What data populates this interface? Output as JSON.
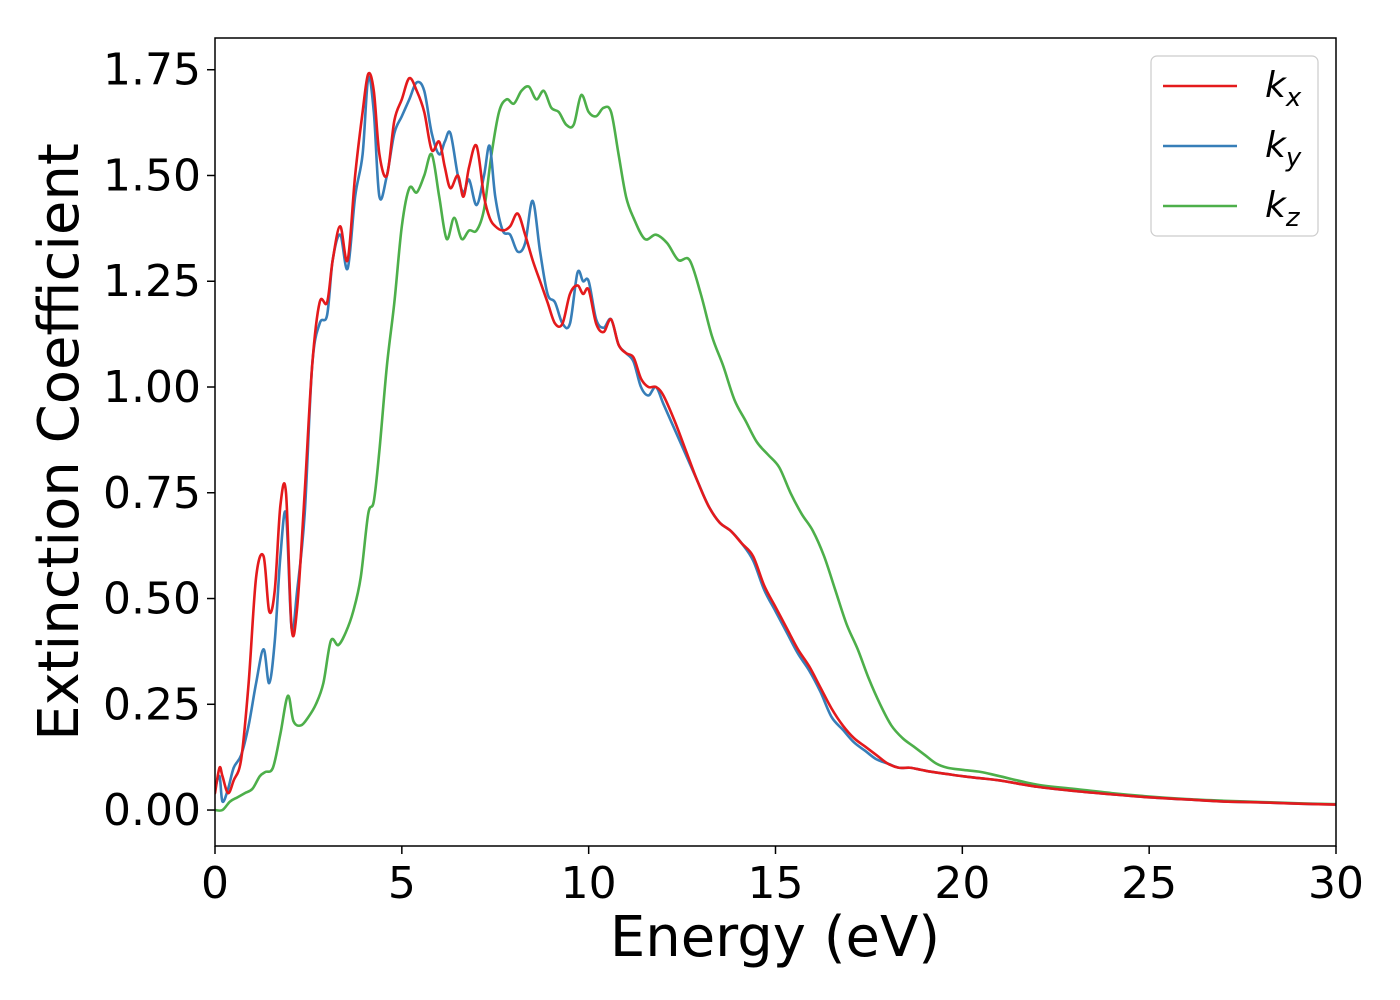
{
  "chart_data": {
    "type": "line",
    "title": "",
    "xlabel": "Energy (eV)",
    "ylabel": "Extinction Coefficient",
    "xlim": [
      0,
      30
    ],
    "ylim": [
      -0.085,
      1.825
    ],
    "xticks": [
      0,
      5,
      10,
      15,
      20,
      25,
      30
    ],
    "xtick_labels": [
      "0",
      "5",
      "10",
      "15",
      "20",
      "25",
      "30"
    ],
    "yticks": [
      0.0,
      0.25,
      0.5,
      0.75,
      1.0,
      1.25,
      1.5,
      1.75
    ],
    "ytick_labels": [
      "0.00",
      "0.25",
      "0.50",
      "0.75",
      "1.00",
      "1.25",
      "1.50",
      "1.75"
    ],
    "grid": false,
    "legend_position": "top-right",
    "series": [
      {
        "name": "k_x",
        "label_main": "k",
        "label_sub": "x",
        "color": "#e41a1c",
        "x": [
          0,
          0.12,
          0.2,
          0.35,
          0.5,
          0.7,
          0.9,
          1.1,
          1.3,
          1.45,
          1.6,
          1.75,
          1.9,
          2.05,
          2.2,
          2.4,
          2.6,
          2.8,
          3.0,
          3.15,
          3.35,
          3.55,
          3.75,
          3.95,
          4.1,
          4.25,
          4.4,
          4.6,
          4.8,
          5.0,
          5.2,
          5.4,
          5.6,
          5.8,
          6.0,
          6.15,
          6.3,
          6.5,
          6.65,
          6.8,
          7.0,
          7.2,
          7.35,
          7.5,
          7.7,
          7.9,
          8.1,
          8.3,
          8.5,
          8.7,
          8.9,
          9.1,
          9.3,
          9.5,
          9.7,
          9.85,
          10.0,
          10.2,
          10.4,
          10.6,
          10.8,
          11.0,
          11.2,
          11.4,
          11.6,
          11.8,
          12.0,
          12.3,
          12.6,
          12.9,
          13.2,
          13.5,
          13.8,
          14.1,
          14.4,
          14.7,
          15.0,
          15.3,
          15.6,
          15.9,
          16.2,
          16.5,
          16.8,
          17.1,
          17.4,
          17.7,
          18.0,
          18.3,
          18.6,
          18.9,
          19.2,
          19.6,
          20.0,
          20.5,
          21.0,
          22.0,
          23.0,
          24.0,
          25.0,
          26.0,
          27.0,
          28.0,
          29.0,
          30.0
        ],
        "y": [
          0.04,
          0.1,
          0.08,
          0.04,
          0.07,
          0.12,
          0.3,
          0.55,
          0.6,
          0.47,
          0.52,
          0.72,
          0.75,
          0.43,
          0.48,
          0.75,
          1.05,
          1.2,
          1.2,
          1.3,
          1.38,
          1.3,
          1.5,
          1.65,
          1.74,
          1.7,
          1.55,
          1.5,
          1.63,
          1.68,
          1.73,
          1.7,
          1.65,
          1.56,
          1.58,
          1.52,
          1.47,
          1.5,
          1.45,
          1.52,
          1.57,
          1.45,
          1.4,
          1.38,
          1.37,
          1.38,
          1.41,
          1.36,
          1.3,
          1.25,
          1.2,
          1.15,
          1.15,
          1.22,
          1.24,
          1.22,
          1.23,
          1.15,
          1.13,
          1.16,
          1.1,
          1.08,
          1.07,
          1.02,
          1.0,
          1.0,
          0.98,
          0.92,
          0.85,
          0.78,
          0.72,
          0.68,
          0.66,
          0.63,
          0.6,
          0.53,
          0.48,
          0.43,
          0.38,
          0.34,
          0.29,
          0.24,
          0.2,
          0.17,
          0.15,
          0.13,
          0.11,
          0.1,
          0.1,
          0.095,
          0.09,
          0.085,
          0.08,
          0.075,
          0.07,
          0.055,
          0.045,
          0.037,
          0.03,
          0.025,
          0.02,
          0.018,
          0.015,
          0.013
        ]
      },
      {
        "name": "k_y",
        "label_main": "k",
        "label_sub": "y",
        "color": "#377eb8",
        "x": [
          0,
          0.12,
          0.2,
          0.35,
          0.5,
          0.7,
          0.9,
          1.1,
          1.3,
          1.45,
          1.6,
          1.75,
          1.9,
          2.05,
          2.2,
          2.4,
          2.6,
          2.8,
          3.0,
          3.15,
          3.35,
          3.55,
          3.75,
          3.95,
          4.1,
          4.25,
          4.4,
          4.6,
          4.8,
          5.0,
          5.2,
          5.4,
          5.6,
          5.8,
          6.0,
          6.15,
          6.3,
          6.5,
          6.65,
          6.8,
          7.0,
          7.2,
          7.35,
          7.5,
          7.7,
          7.9,
          8.1,
          8.3,
          8.5,
          8.7,
          8.9,
          9.1,
          9.3,
          9.5,
          9.7,
          9.85,
          10.0,
          10.2,
          10.4,
          10.6,
          10.8,
          11.0,
          11.2,
          11.4,
          11.6,
          11.8,
          12.0,
          12.3,
          12.6,
          12.9,
          13.2,
          13.5,
          13.8,
          14.1,
          14.4,
          14.7,
          15.0,
          15.3,
          15.6,
          15.9,
          16.2,
          16.5,
          16.8,
          17.1,
          17.4,
          17.7,
          18.0,
          18.3,
          18.6,
          18.9,
          19.2,
          19.6,
          20.0,
          20.5,
          21.0,
          22.0,
          23.0,
          24.0,
          25.0,
          26.0,
          27.0,
          28.0,
          29.0,
          30.0
        ],
        "y": [
          0.05,
          0.08,
          0.02,
          0.05,
          0.1,
          0.13,
          0.2,
          0.3,
          0.38,
          0.3,
          0.4,
          0.6,
          0.7,
          0.43,
          0.52,
          0.7,
          1.05,
          1.15,
          1.17,
          1.3,
          1.36,
          1.28,
          1.45,
          1.55,
          1.73,
          1.65,
          1.45,
          1.5,
          1.6,
          1.64,
          1.68,
          1.72,
          1.7,
          1.6,
          1.55,
          1.58,
          1.6,
          1.5,
          1.46,
          1.49,
          1.43,
          1.5,
          1.57,
          1.45,
          1.37,
          1.36,
          1.32,
          1.34,
          1.44,
          1.32,
          1.22,
          1.2,
          1.15,
          1.15,
          1.27,
          1.25,
          1.25,
          1.16,
          1.14,
          1.16,
          1.1,
          1.08,
          1.06,
          1.0,
          0.98,
          1.0,
          0.96,
          0.9,
          0.84,
          0.78,
          0.72,
          0.68,
          0.66,
          0.63,
          0.59,
          0.52,
          0.47,
          0.42,
          0.37,
          0.33,
          0.28,
          0.22,
          0.19,
          0.16,
          0.14,
          0.12,
          0.11,
          0.1,
          0.1,
          0.095,
          0.09,
          0.085,
          0.08,
          0.075,
          0.07,
          0.055,
          0.045,
          0.037,
          0.03,
          0.025,
          0.02,
          0.018,
          0.015,
          0.013
        ]
      },
      {
        "name": "k_z",
        "label_main": "k",
        "label_sub": "z",
        "color": "#4daf4a",
        "x": [
          0,
          0.2,
          0.4,
          0.6,
          0.8,
          1.0,
          1.2,
          1.35,
          1.55,
          1.75,
          1.95,
          2.1,
          2.3,
          2.5,
          2.7,
          2.9,
          3.1,
          3.3,
          3.5,
          3.7,
          3.9,
          4.1,
          4.25,
          4.4,
          4.6,
          4.8,
          5.0,
          5.2,
          5.4,
          5.6,
          5.8,
          6.0,
          6.2,
          6.4,
          6.6,
          6.8,
          7.0,
          7.2,
          7.4,
          7.6,
          7.8,
          8.0,
          8.2,
          8.4,
          8.6,
          8.8,
          9.0,
          9.2,
          9.4,
          9.6,
          9.8,
          10.0,
          10.2,
          10.4,
          10.6,
          10.8,
          11.0,
          11.2,
          11.5,
          11.8,
          12.1,
          12.4,
          12.7,
          13.0,
          13.3,
          13.6,
          13.9,
          14.2,
          14.5,
          14.8,
          15.1,
          15.4,
          15.7,
          16.0,
          16.3,
          16.6,
          16.9,
          17.2,
          17.5,
          17.8,
          18.1,
          18.4,
          18.7,
          19.0,
          19.3,
          19.6,
          20.0,
          20.5,
          21.0,
          22.0,
          23.0,
          24.0,
          25.0,
          26.0,
          27.0,
          28.0,
          29.0,
          30.0
        ],
        "y": [
          0.0,
          0.0,
          0.02,
          0.03,
          0.04,
          0.05,
          0.08,
          0.09,
          0.1,
          0.18,
          0.27,
          0.21,
          0.2,
          0.22,
          0.25,
          0.3,
          0.4,
          0.39,
          0.42,
          0.47,
          0.55,
          0.7,
          0.73,
          0.85,
          1.05,
          1.2,
          1.38,
          1.47,
          1.46,
          1.5,
          1.55,
          1.45,
          1.35,
          1.4,
          1.35,
          1.37,
          1.37,
          1.42,
          1.55,
          1.65,
          1.68,
          1.67,
          1.7,
          1.71,
          1.68,
          1.7,
          1.66,
          1.65,
          1.62,
          1.62,
          1.69,
          1.65,
          1.64,
          1.66,
          1.65,
          1.55,
          1.45,
          1.4,
          1.35,
          1.36,
          1.34,
          1.3,
          1.3,
          1.22,
          1.12,
          1.05,
          0.97,
          0.92,
          0.87,
          0.84,
          0.81,
          0.75,
          0.7,
          0.66,
          0.6,
          0.52,
          0.44,
          0.38,
          0.31,
          0.25,
          0.2,
          0.17,
          0.15,
          0.13,
          0.11,
          0.1,
          0.095,
          0.09,
          0.08,
          0.06,
          0.05,
          0.04,
          0.032,
          0.026,
          0.022,
          0.019,
          0.016,
          0.014
        ]
      }
    ]
  }
}
